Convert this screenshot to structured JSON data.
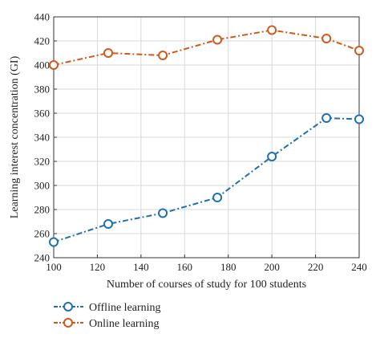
{
  "chart_data": {
    "type": "line",
    "xlabel": "Number of courses of study for 100 students",
    "ylabel": "Learning interest concentration (GI)",
    "xlim": [
      100,
      240
    ],
    "ylim": [
      240,
      440
    ],
    "xticks": [
      100,
      120,
      140,
      160,
      180,
      200,
      220,
      240
    ],
    "yticks": [
      240,
      260,
      280,
      300,
      320,
      340,
      360,
      380,
      400,
      420,
      440
    ],
    "xtick_labels": [
      "100",
      "120",
      "140",
      "160",
      "180",
      "200",
      "220",
      "240"
    ],
    "ytick_labels": [
      "240",
      "260",
      "280",
      "300",
      "320",
      "340",
      "360",
      "380",
      "400",
      "420",
      "440"
    ],
    "grid": true,
    "legend_placement": "bottom-left, outside plot",
    "x": [
      100,
      125,
      150,
      175,
      200,
      225,
      240
    ],
    "series": [
      {
        "name": "Offline learning",
        "values": [
          253,
          268,
          277,
          290,
          324,
          356,
          355
        ],
        "color": "#1f6fb2",
        "line_style": "dash-dot",
        "marker": "open-circle"
      },
      {
        "name": "Online learning",
        "values": [
          400,
          410,
          408,
          421,
          429,
          422,
          412
        ],
        "color": "#d2581a",
        "line_style": "dash-dot",
        "marker": "open-circle"
      }
    ]
  }
}
